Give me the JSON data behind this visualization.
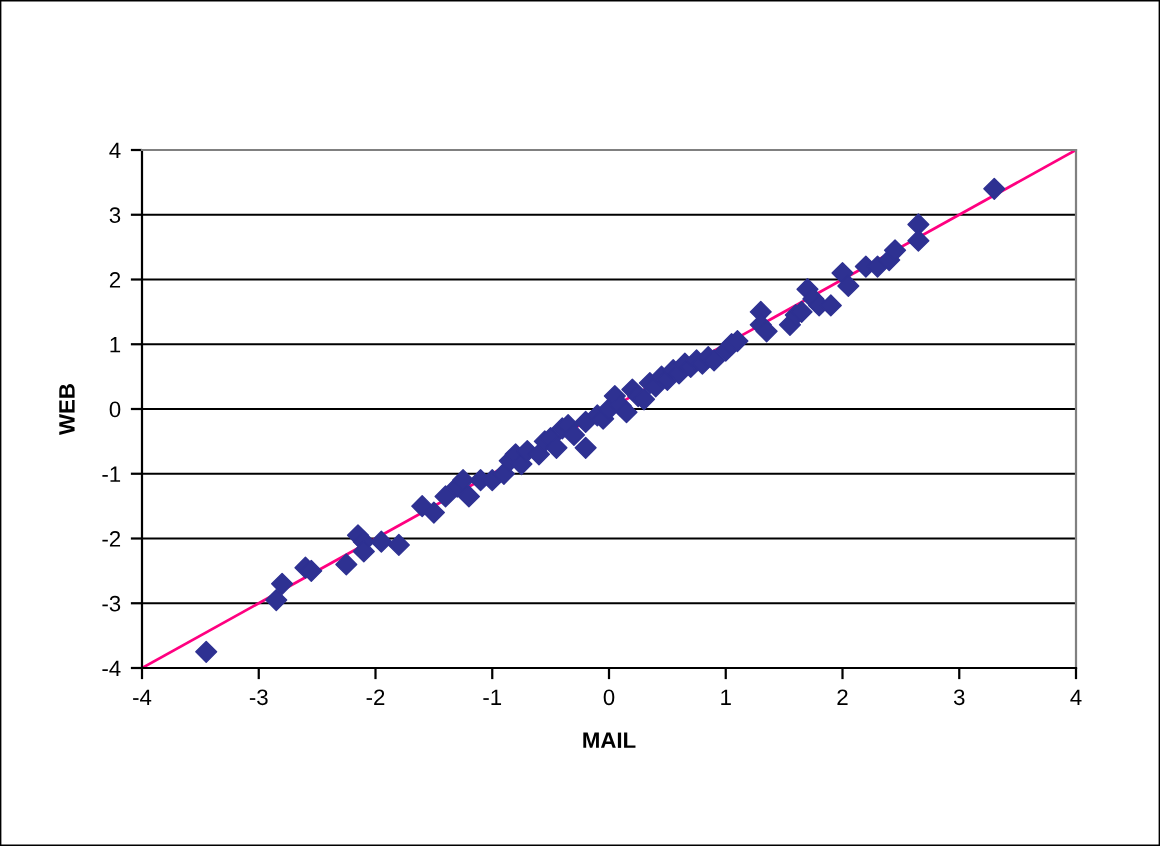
{
  "chart_data": {
    "type": "scatter",
    "xlabel": "MAIL",
    "ylabel": "WEB",
    "xlim": [
      -4,
      4
    ],
    "ylim": [
      -4,
      4
    ],
    "xticks": [
      -4,
      -3,
      -2,
      -1,
      0,
      1,
      2,
      3,
      4
    ],
    "yticks": [
      -4,
      -3,
      -2,
      -1,
      0,
      1,
      2,
      3,
      4
    ],
    "grid": "y",
    "legend": false,
    "marker": "diamond",
    "series": [
      {
        "color": "#2e3192",
        "x": [
          -3.45,
          -2.85,
          -2.8,
          -2.6,
          -2.55,
          -2.25,
          -2.15,
          -2.1,
          -2.1,
          -1.95,
          -1.8,
          -1.6,
          -1.5,
          -1.4,
          -1.3,
          -1.25,
          -1.2,
          -1.1,
          -1.0,
          -0.9,
          -0.85,
          -0.8,
          -0.75,
          -0.7,
          -0.6,
          -0.55,
          -0.5,
          -0.45,
          -0.4,
          -0.35,
          -0.3,
          -0.2,
          -0.2,
          -0.1,
          -0.05,
          0,
          0.05,
          0.1,
          0.15,
          0.2,
          0.25,
          0.3,
          0.35,
          0.4,
          0.45,
          0.5,
          0.55,
          0.6,
          0.65,
          0.7,
          0.75,
          0.8,
          0.85,
          0.9,
          1.0,
          1.05,
          1.1,
          1.3,
          1.3,
          1.35,
          1.55,
          1.6,
          1.65,
          1.7,
          1.75,
          1.8,
          1.9,
          2.0,
          2.05,
          2.2,
          2.3,
          2.4,
          2.45,
          2.65,
          2.65,
          3.3
        ],
        "values": [
          -3.75,
          -2.95,
          -2.7,
          -2.45,
          -2.5,
          -2.4,
          -1.95,
          -2.05,
          -2.2,
          -2.05,
          -2.1,
          -1.5,
          -1.6,
          -1.35,
          -1.2,
          -1.1,
          -1.35,
          -1.1,
          -1.1,
          -1.0,
          -0.8,
          -0.7,
          -0.85,
          -0.65,
          -0.7,
          -0.5,
          -0.45,
          -0.6,
          -0.3,
          -0.25,
          -0.4,
          -0.6,
          -0.2,
          -0.1,
          -0.15,
          0,
          0.2,
          0.05,
          -0.05,
          0.3,
          0.2,
          0.15,
          0.4,
          0.35,
          0.5,
          0.45,
          0.6,
          0.55,
          0.7,
          0.65,
          0.75,
          0.7,
          0.8,
          0.75,
          0.9,
          1.0,
          1.05,
          1.5,
          1.3,
          1.2,
          1.3,
          1.45,
          1.5,
          1.85,
          1.7,
          1.6,
          1.6,
          2.1,
          1.9,
          2.2,
          2.2,
          2.3,
          2.45,
          2.85,
          2.6,
          3.4
        ]
      },
      {
        "type": "line",
        "color": "#ff0080",
        "marker": "none",
        "x": [
          -4,
          4
        ],
        "values": [
          -4,
          4
        ]
      }
    ]
  }
}
